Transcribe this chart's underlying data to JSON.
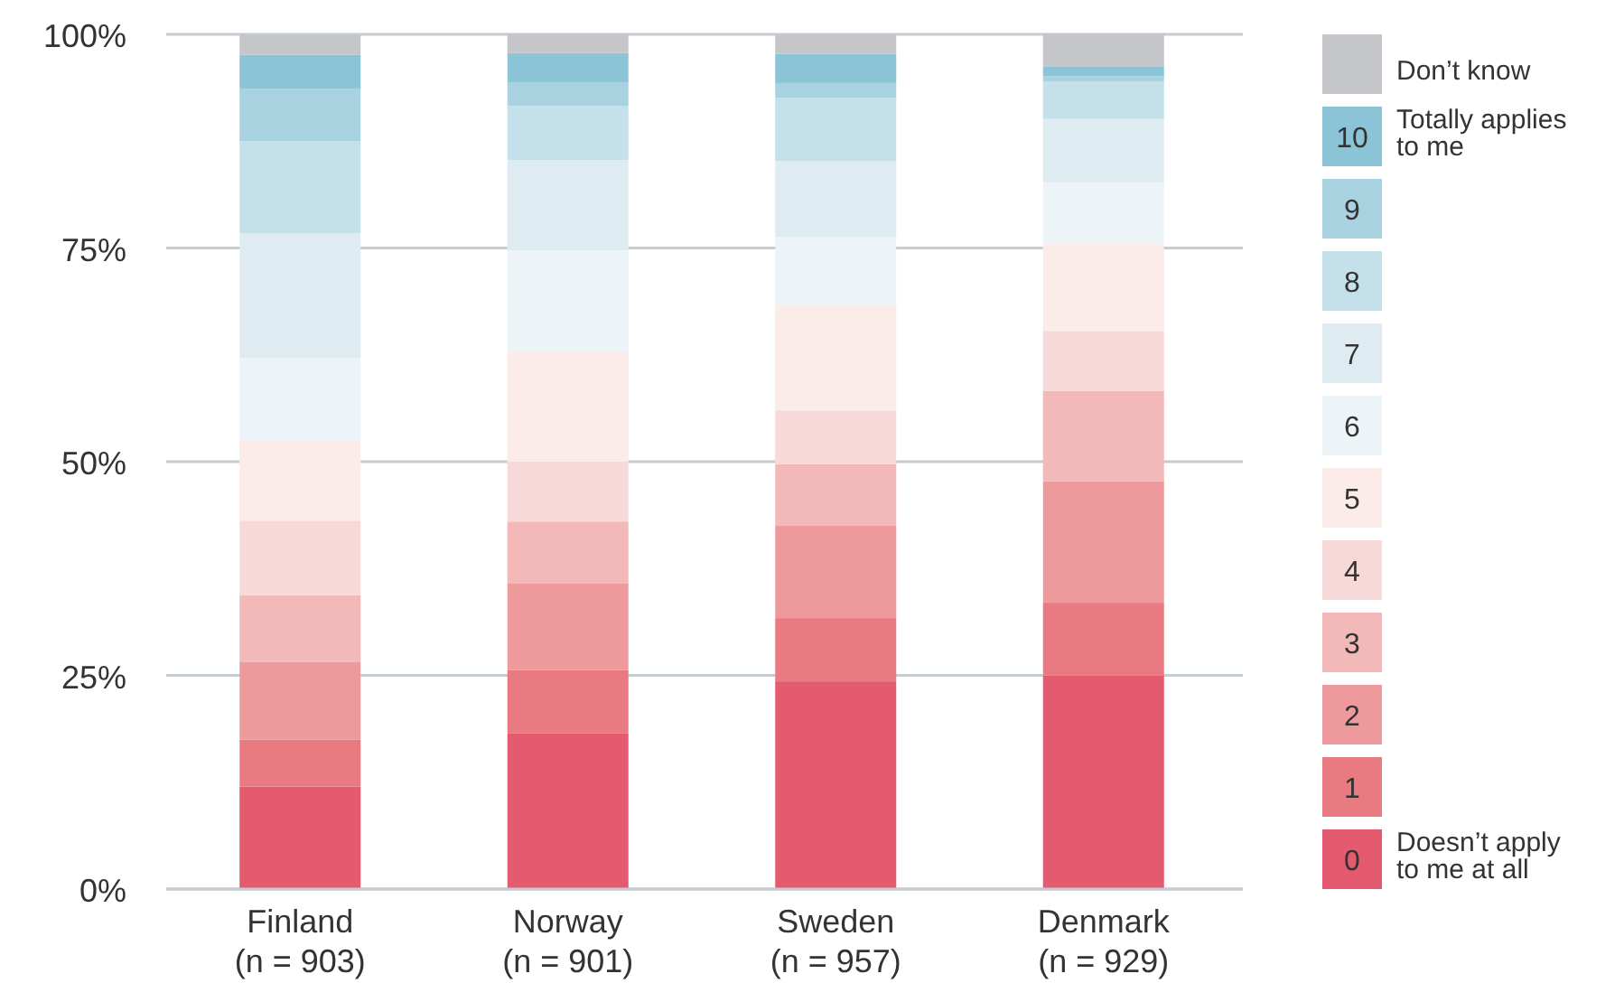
{
  "chart_data": {
    "type": "bar",
    "stacked": true,
    "categories": [
      "Finland\n(n = 903)",
      "Norway\n(n = 901)",
      "Sweden\n(n = 957)",
      "Denmark\n(n = 929)"
    ],
    "series": [
      {
        "name": "0",
        "color": "#e45a6e",
        "values": [
          12.0,
          18.2,
          24.3,
          25.0
        ]
      },
      {
        "name": "1",
        "color": "#ea7a82",
        "values": [
          5.5,
          7.4,
          7.4,
          8.5
        ]
      },
      {
        "name": "2",
        "color": "#ee9a9c",
        "values": [
          9.1,
          10.2,
          10.8,
          14.2
        ]
      },
      {
        "name": "3",
        "color": "#f3b9b9",
        "values": [
          7.8,
          7.2,
          7.2,
          10.6
        ]
      },
      {
        "name": "4",
        "color": "#f8d9d9",
        "values": [
          8.7,
          7.0,
          6.3,
          7.0
        ]
      },
      {
        "name": "5",
        "color": "#fbecea",
        "values": [
          9.5,
          12.9,
          12.3,
          10.2
        ]
      },
      {
        "name": "6",
        "color": "#ecf4f8",
        "values": [
          9.5,
          11.8,
          8.0,
          7.2
        ]
      },
      {
        "name": "7",
        "color": "#deecf2",
        "values": [
          14.6,
          10.6,
          8.9,
          7.4
        ]
      },
      {
        "name": "8",
        "color": "#c4e0ea",
        "values": [
          10.8,
          6.3,
          7.4,
          4.4
        ]
      },
      {
        "name": "9",
        "color": "#a8d2df",
        "values": [
          6.1,
          2.8,
          1.7,
          0.6
        ]
      },
      {
        "name": "10",
        "color": "#8cc4d7",
        "values": [
          4.0,
          3.4,
          3.4,
          1.1
        ]
      },
      {
        "name": "Don’t know",
        "color": "#c4c6c9",
        "values": [
          2.3,
          2.3,
          2.3,
          3.9
        ]
      }
    ],
    "annotations": [
      "Doesn’t apply to me at all",
      "Totally applies to me"
    ],
    "ylim": [
      0,
      100
    ],
    "yticks": [
      {
        "value": 0,
        "label": "0%"
      },
      {
        "value": 25,
        "label": "25%"
      },
      {
        "value": 50,
        "label": "50%"
      },
      {
        "value": 75,
        "label": "75%"
      },
      {
        "value": 100,
        "label": "100%"
      }
    ],
    "grid": "y",
    "legend": "right"
  }
}
